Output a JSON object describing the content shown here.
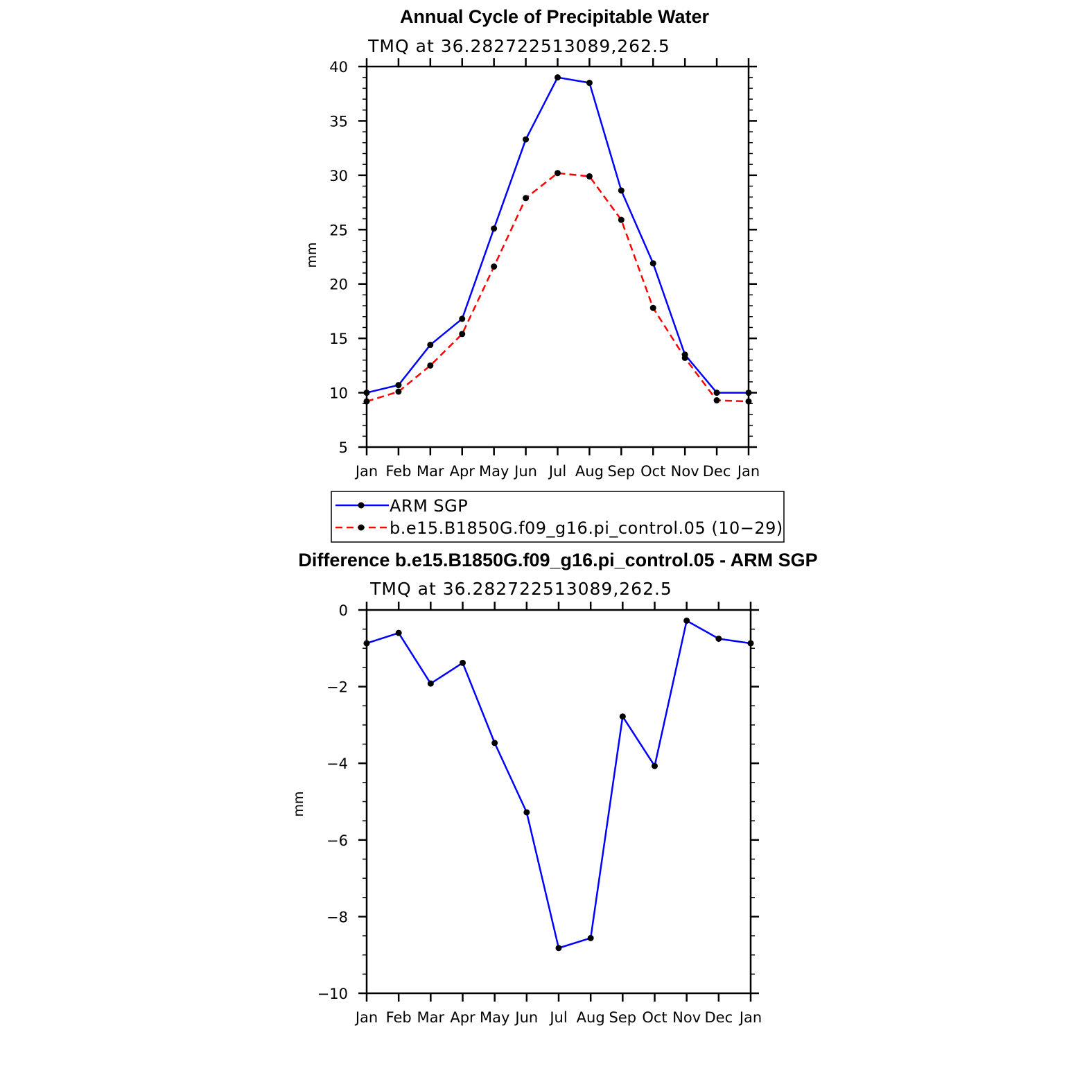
{
  "chart_data": [
    {
      "type": "line",
      "title": "Annual Cycle of Precipitable Water",
      "subtitle": "TMQ  at  36.282722513089,262.5",
      "xlabel": "",
      "ylabel": "mm",
      "categories": [
        "Jan",
        "Feb",
        "Mar",
        "Apr",
        "May",
        "Jun",
        "Jul",
        "Aug",
        "Sep",
        "Oct",
        "Nov",
        "Dec",
        "Jan"
      ],
      "ylim": [
        5,
        40
      ],
      "yticks": [
        5,
        10,
        15,
        20,
        25,
        30,
        35,
        40
      ],
      "grid": false,
      "legend_position": "below",
      "series": [
        {
          "name": "ARM  SGP",
          "color": "#0000ff",
          "dash": "solid",
          "marker": "dot",
          "values": [
            10.0,
            10.7,
            14.4,
            16.8,
            25.1,
            33.3,
            39.0,
            38.5,
            28.6,
            21.9,
            13.5,
            10.0,
            10.0
          ]
        },
        {
          "name": "b.e15.B1850G.f09_g16.pi_control.05 (10−29)",
          "color": "#ff0000",
          "dash": "dashed",
          "marker": "dot",
          "values": [
            9.2,
            10.1,
            12.5,
            15.4,
            21.6,
            27.9,
            30.2,
            29.9,
            25.9,
            17.8,
            13.2,
            9.3,
            9.2
          ]
        }
      ]
    },
    {
      "type": "line",
      "title": "Difference b.e15.B1850G.f09_g16.pi_control.05 - ARM SGP",
      "subtitle": "TMQ  at  36.282722513089,262.5",
      "xlabel": "",
      "ylabel": "mm",
      "categories": [
        "Jan",
        "Feb",
        "Mar",
        "Apr",
        "May",
        "Jun",
        "Jul",
        "Aug",
        "Sep",
        "Oct",
        "Nov",
        "Dec",
        "Jan"
      ],
      "ylim": [
        -10,
        0
      ],
      "yticks": [
        -10,
        -8,
        -6,
        -4,
        -2,
        0
      ],
      "ytick_labels": [
        "−10",
        "−8",
        "−6",
        "−4",
        "−2",
        "0"
      ],
      "grid": false,
      "series": [
        {
          "color": "#0000ff",
          "dash": "solid",
          "marker": "dot",
          "values": [
            -0.87,
            -0.6,
            -1.92,
            -1.38,
            -3.47,
            -5.28,
            -8.82,
            -8.56,
            -2.78,
            -4.07,
            -0.28,
            -0.75,
            -0.87
          ]
        }
      ]
    }
  ]
}
